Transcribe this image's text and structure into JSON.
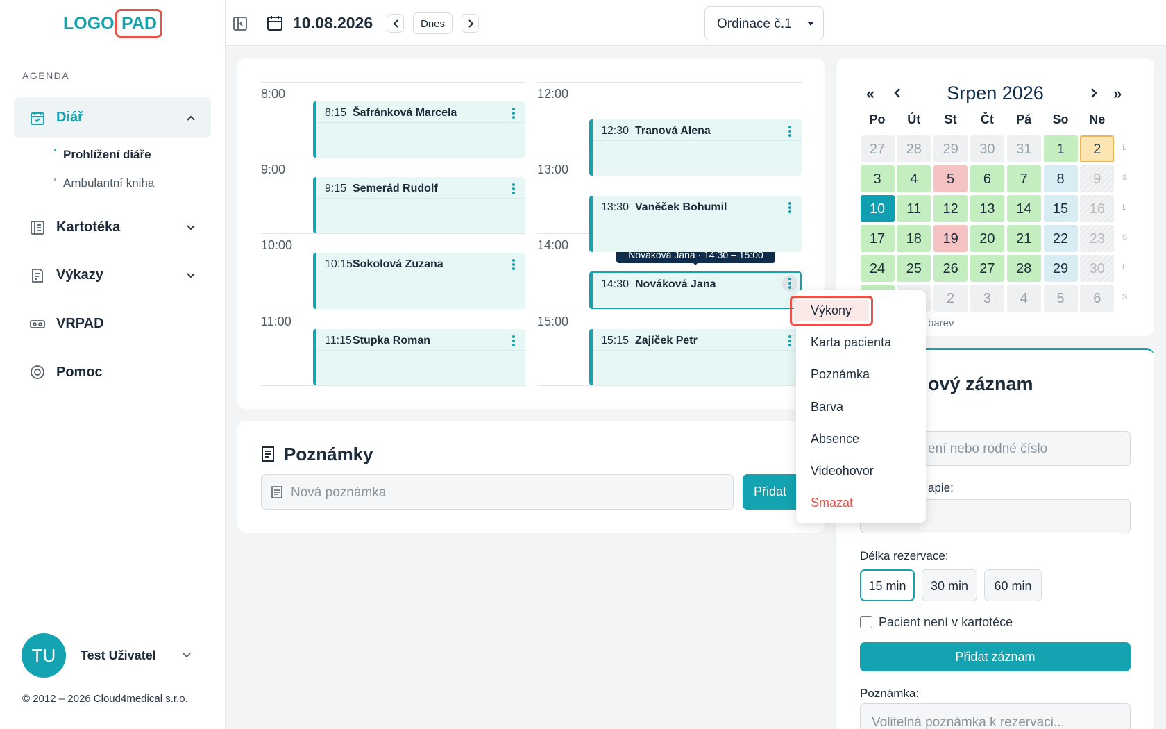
{
  "logo": {
    "part1": "LOGO",
    "part2": "PAD"
  },
  "header": {
    "date": "10.08.2026",
    "today_button": "Dnes",
    "room": "Ordinace č.1"
  },
  "sidebar": {
    "section": "AGENDA",
    "nav": [
      {
        "label": "Diář",
        "children": [
          "Prohlížení diáře",
          "Ambulantní kniha"
        ]
      },
      {
        "label": "Kartotéka"
      },
      {
        "label": "Výkazy"
      },
      {
        "label": "VRPAD"
      },
      {
        "label": "Pomoc"
      }
    ],
    "user": {
      "initials": "TU",
      "name": "Test Uživatel"
    },
    "copyright": "© 2012 – 2026 Cloud4medical s.r.o."
  },
  "schedule": {
    "columns": [
      {
        "hours": [
          "8:00",
          "9:00",
          "10:00",
          "11:00"
        ],
        "appointments": [
          {
            "time": "8:15",
            "name": "Šafránková Marcela"
          },
          {
            "time": "9:15",
            "name": "Semerád Rudolf"
          },
          {
            "time": "10:15",
            "name": "Sokolová Zuzana"
          },
          {
            "time": "11:15",
            "name": "Stupka Roman"
          }
        ]
      },
      {
        "hours": [
          "12:00",
          "13:00",
          "14:00",
          "15:00"
        ],
        "appointments": [
          {
            "time": "12:30",
            "name": "Tranová Alena"
          },
          {
            "time": "13:30",
            "name": "Vaněček Bohumil"
          },
          {
            "time": "14:30",
            "name": "Nováková Jana"
          },
          {
            "time": "15:15",
            "name": "Zajíček Petr"
          }
        ]
      }
    ],
    "tooltip": "Nováková Jana · 14:30 – 15:00"
  },
  "context_menu": {
    "items": [
      "Výkony",
      "Karta pacienta",
      "Poznámka",
      "Barva",
      "Absence",
      "Videohovor",
      "Smazat"
    ]
  },
  "notes": {
    "title": "Poznámky",
    "placeholder": "Nová poznámka",
    "button": "Přidat"
  },
  "calendar": {
    "prev_year": "«",
    "next_year": "»",
    "title": "Srpen 2026",
    "weekdays": [
      "Po",
      "Út",
      "St",
      "Čt",
      "Pá",
      "So",
      "Ne"
    ],
    "weeks": [
      [
        {
          "day": "27",
          "state": "other"
        },
        {
          "day": "28",
          "state": "other"
        },
        {
          "day": "29",
          "state": "other"
        },
        {
          "day": "30",
          "state": "other"
        },
        {
          "day": "31",
          "state": "other"
        },
        {
          "day": "1",
          "state": "green"
        },
        {
          "day": "2",
          "state": "yellow"
        }
      ],
      [
        {
          "day": "3",
          "state": "green"
        },
        {
          "day": "4",
          "state": "green"
        },
        {
          "day": "5",
          "state": "red"
        },
        {
          "day": "6",
          "state": "green"
        },
        {
          "day": "7",
          "state": "green"
        },
        {
          "day": "8",
          "state": "sat"
        },
        {
          "day": "9",
          "state": "sun"
        }
      ],
      [
        {
          "day": "10",
          "state": "today"
        },
        {
          "day": "11",
          "state": "green"
        },
        {
          "day": "12",
          "state": "green"
        },
        {
          "day": "13",
          "state": "green"
        },
        {
          "day": "14",
          "state": "green"
        },
        {
          "day": "15",
          "state": "sat"
        },
        {
          "day": "16",
          "state": "sun"
        }
      ],
      [
        {
          "day": "17",
          "state": "green"
        },
        {
          "day": "18",
          "state": "green"
        },
        {
          "day": "19",
          "state": "red"
        },
        {
          "day": "20",
          "state": "green"
        },
        {
          "day": "21",
          "state": "green"
        },
        {
          "day": "22",
          "state": "sat"
        },
        {
          "day": "23",
          "state": "sun"
        }
      ],
      [
        {
          "day": "24",
          "state": "green"
        },
        {
          "day": "25",
          "state": "green"
        },
        {
          "day": "26",
          "state": "green"
        },
        {
          "day": "27",
          "state": "green"
        },
        {
          "day": "28",
          "state": "green"
        },
        {
          "day": "29",
          "state": "sat"
        },
        {
          "day": "30",
          "state": "sun"
        }
      ],
      [
        {
          "day": null,
          "state": "green"
        },
        {
          "day": null,
          "state": "other"
        },
        {
          "day": "2",
          "state": "other"
        },
        {
          "day": "3",
          "state": "other"
        },
        {
          "day": "4",
          "state": "other"
        },
        {
          "day": "5",
          "state": "other"
        },
        {
          "day": "6",
          "state": "other"
        }
      ]
    ],
    "week_parity": [
      "L",
      "S",
      "L",
      "S",
      "L",
      "S"
    ],
    "legend_fragment": "barev"
  },
  "form": {
    "title_fragment": "ový záznam",
    "search_placeholder_fragment": "ení nebo rodné číslo",
    "label_fragment": "apie:",
    "duration_label": "Délka rezervace:",
    "durations": [
      "15 min",
      "30 min",
      "60 min"
    ],
    "checkbox_label": "Pacient není v kartotéce",
    "submit": "Přidat záznam",
    "note_label": "Poznámka:",
    "note_placeholder": "Volitelná poznámka k rezervaci..."
  }
}
